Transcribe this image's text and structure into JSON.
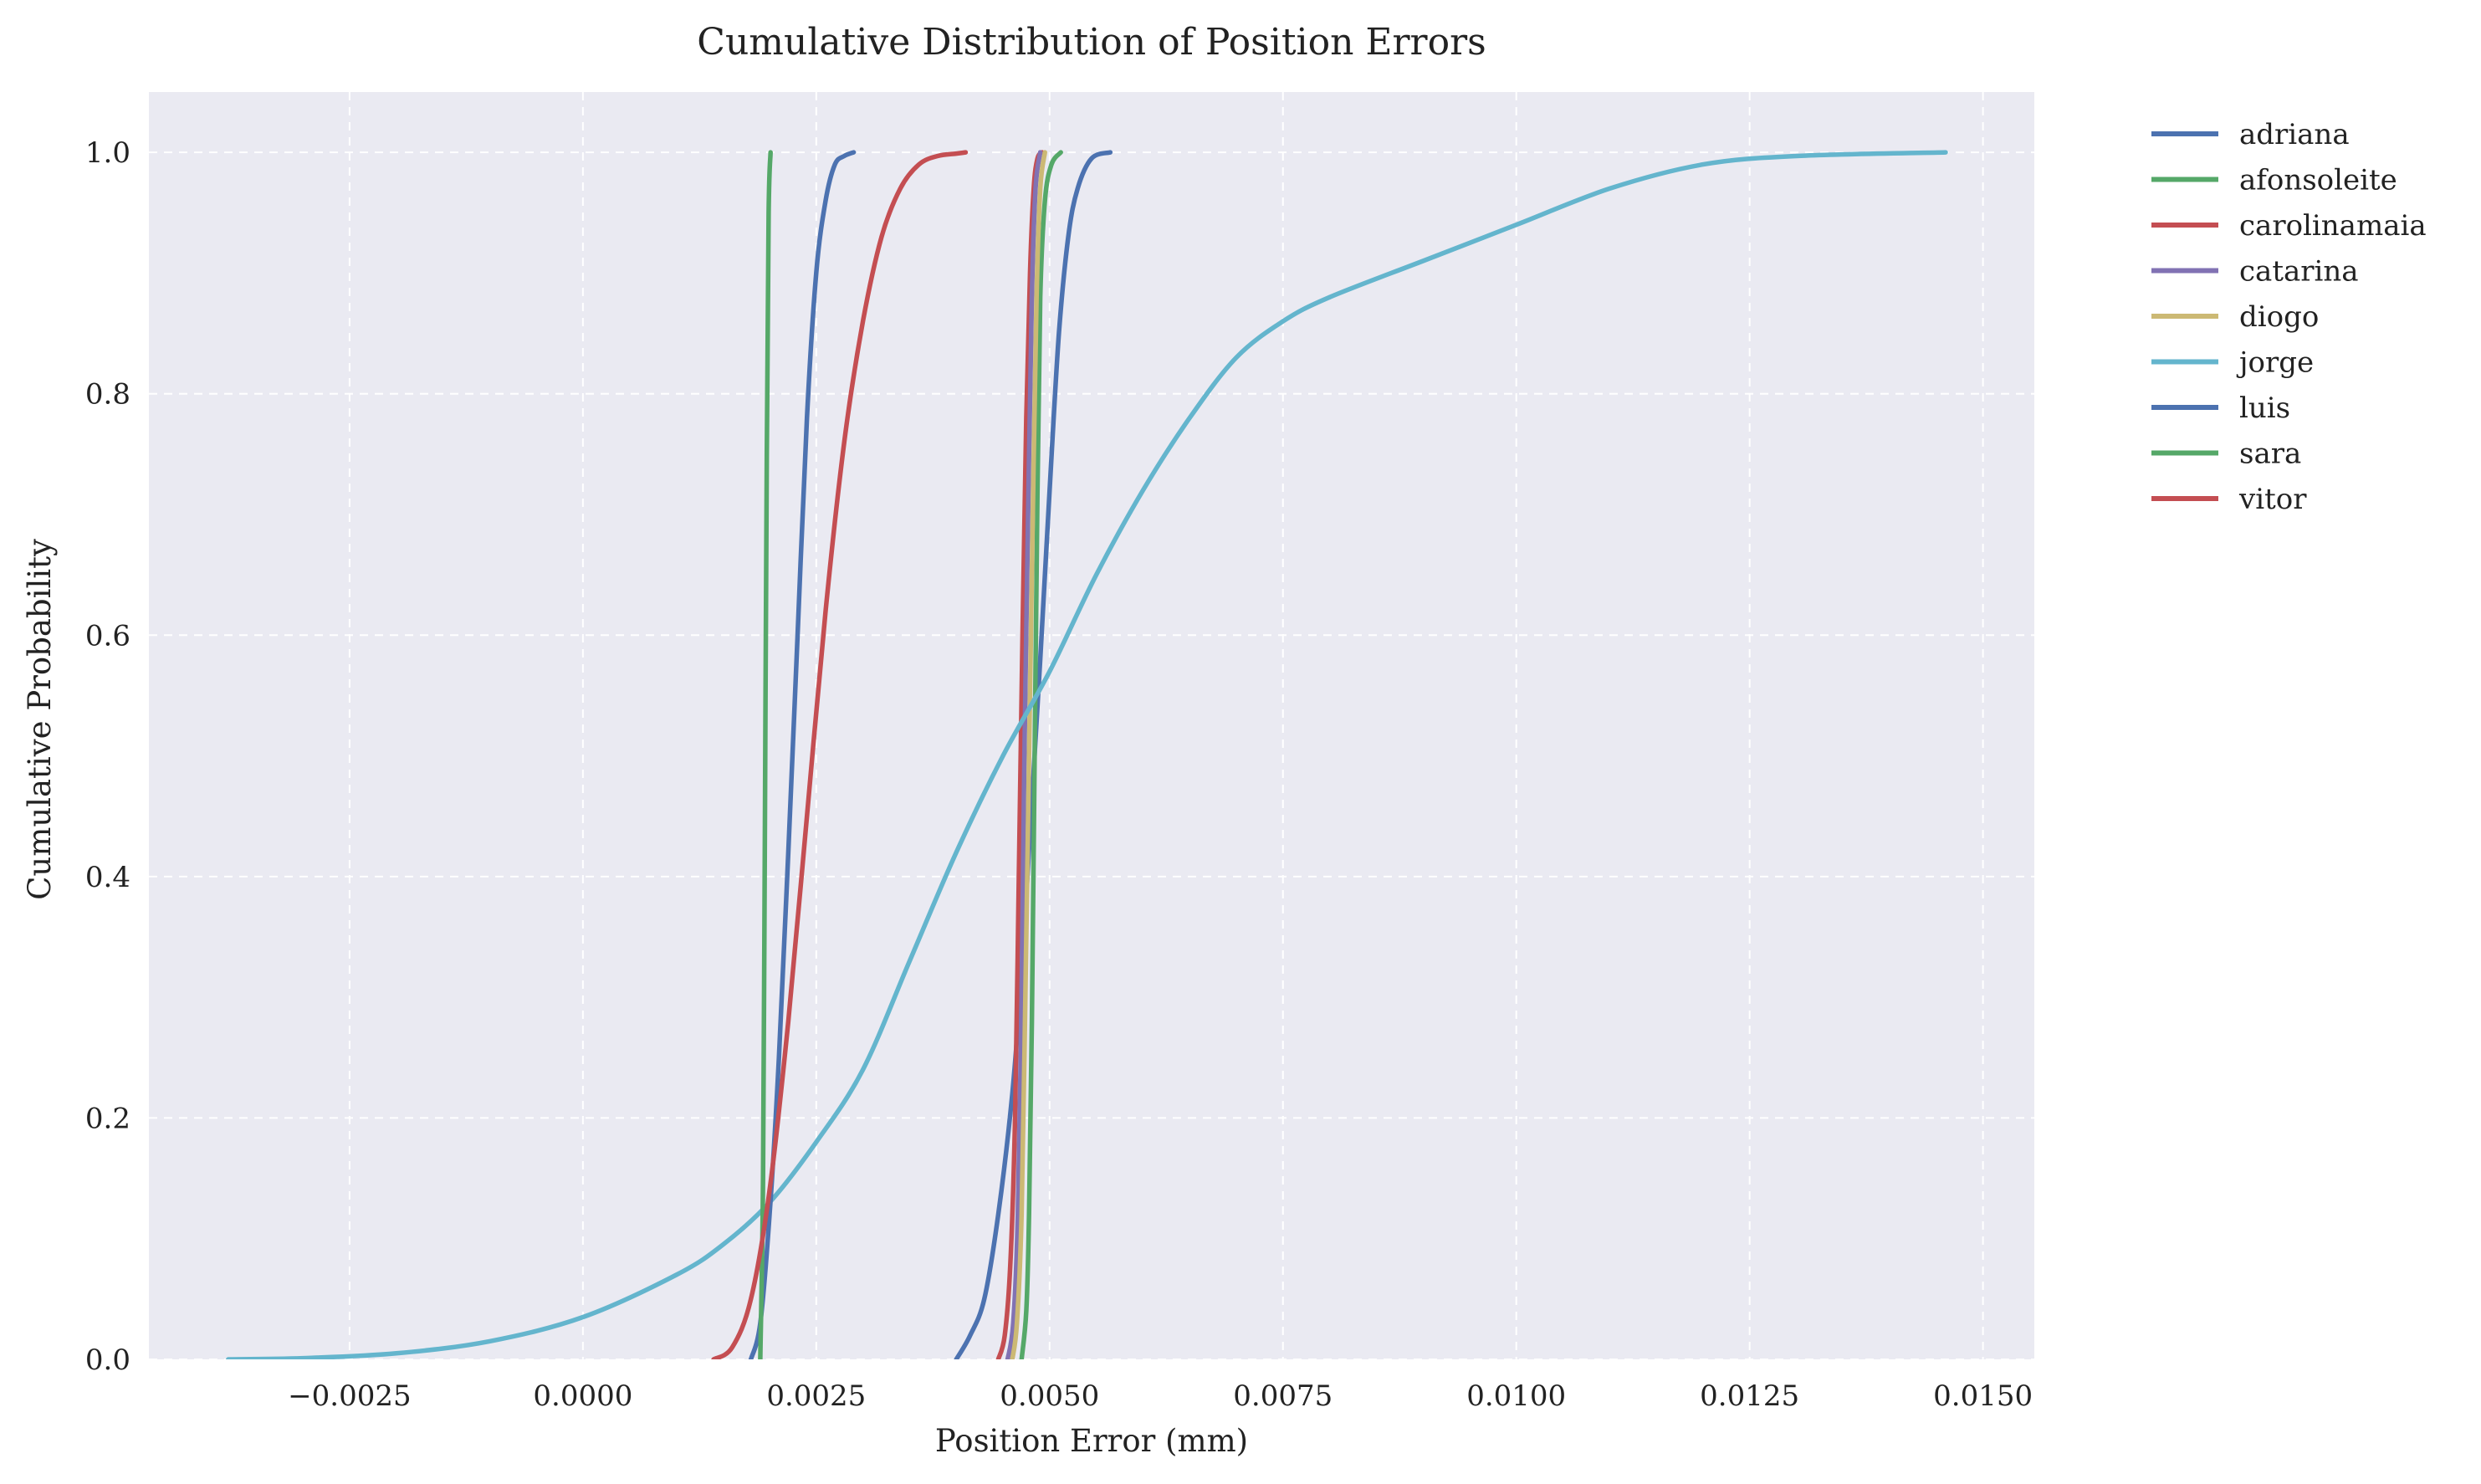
{
  "chart_data": {
    "type": "line",
    "title": "Cumulative Distribution of Position Errors",
    "xlabel": "Position Error (mm)",
    "ylabel": "Cumulative Probability",
    "xlim": [
      -0.00465,
      0.01555
    ],
    "ylim": [
      0.0,
      1.05
    ],
    "x_ticks": [
      -0.0025,
      0.0,
      0.0025,
      0.005,
      0.0075,
      0.01,
      0.0125,
      0.015
    ],
    "x_tick_labels": [
      "−0.0025",
      "0.0000",
      "0.0025",
      "0.0050",
      "0.0075",
      "0.0100",
      "0.0125",
      "0.0150"
    ],
    "y_ticks": [
      0.0,
      0.2,
      0.4,
      0.6,
      0.8,
      1.0
    ],
    "y_tick_labels": [
      "0.0",
      "0.2",
      "0.4",
      "0.6",
      "0.8",
      "1.0"
    ],
    "grid": true,
    "legend_position": "outside-right",
    "series": [
      {
        "name": "adriana",
        "color": "#4c72b0",
        "x": [
          0.004,
          0.00415,
          0.0043,
          0.00445,
          0.0046,
          0.0047,
          0.0048,
          0.0049,
          0.005,
          0.0051,
          0.0052,
          0.0053,
          0.00545,
          0.00565
        ],
        "y": [
          0.0,
          0.02,
          0.05,
          0.12,
          0.22,
          0.32,
          0.45,
          0.58,
          0.72,
          0.85,
          0.93,
          0.97,
          0.995,
          1.0
        ]
      },
      {
        "name": "afonsoleite",
        "color": "#55a868",
        "x": [
          0.0047,
          0.00475,
          0.00478,
          0.00481,
          0.00484,
          0.00487,
          0.0049,
          0.00495,
          0.00502,
          0.00512
        ],
        "y": [
          0.0,
          0.04,
          0.12,
          0.28,
          0.5,
          0.72,
          0.88,
          0.96,
          0.99,
          1.0
        ]
      },
      {
        "name": "carolinamaia",
        "color": "#c44e52",
        "x": [
          0.00445,
          0.00452,
          0.00458,
          0.00463,
          0.00467,
          0.00471,
          0.00475,
          0.00479,
          0.00483,
          0.00487,
          0.00492
        ],
        "y": [
          0.0,
          0.02,
          0.08,
          0.2,
          0.4,
          0.6,
          0.78,
          0.9,
          0.97,
          0.995,
          1.0
        ]
      },
      {
        "name": "catarina",
        "color": "#8172b3",
        "x": [
          0.00455,
          0.00461,
          0.00466,
          0.0047,
          0.00473,
          0.00477,
          0.00481,
          0.00485,
          0.0049
        ],
        "y": [
          0.0,
          0.03,
          0.12,
          0.3,
          0.5,
          0.7,
          0.88,
          0.97,
          1.0
        ]
      },
      {
        "name": "diogo",
        "color": "#ccb974",
        "x": [
          0.0046,
          0.00465,
          0.0047,
          0.00474,
          0.00478,
          0.00482,
          0.00486,
          0.0049,
          0.00495
        ],
        "y": [
          0.0,
          0.03,
          0.12,
          0.3,
          0.5,
          0.7,
          0.88,
          0.97,
          1.0
        ]
      },
      {
        "name": "jorge",
        "color": "#64b5cd",
        "x": [
          -0.0038,
          -0.003,
          -0.002,
          -0.001,
          0.0,
          0.001,
          0.0015,
          0.002,
          0.0025,
          0.003,
          0.0035,
          0.004,
          0.0045,
          0.005,
          0.0055,
          0.006,
          0.0065,
          0.007,
          0.0075,
          0.008,
          0.009,
          0.01,
          0.011,
          0.012,
          0.013,
          0.0146
        ],
        "y": [
          0.0,
          0.001,
          0.005,
          0.015,
          0.035,
          0.07,
          0.095,
          0.13,
          0.18,
          0.24,
          0.33,
          0.42,
          0.5,
          0.57,
          0.65,
          0.72,
          0.78,
          0.83,
          0.86,
          0.88,
          0.91,
          0.94,
          0.97,
          0.99,
          0.997,
          1.0
        ]
      },
      {
        "name": "luis",
        "color": "#4c72b0",
        "x": [
          0.0018,
          0.0019,
          0.002,
          0.0021,
          0.0022,
          0.0023,
          0.0024,
          0.0025,
          0.0026,
          0.0027,
          0.0028,
          0.0029
        ],
        "y": [
          0.0,
          0.03,
          0.12,
          0.25,
          0.42,
          0.6,
          0.78,
          0.9,
          0.96,
          0.99,
          0.997,
          1.0
        ]
      },
      {
        "name": "sara",
        "color": "#55a868",
        "x": [
          0.0019,
          0.00193,
          0.00195,
          0.00197,
          0.00199,
          0.00201
        ],
        "y": [
          0.0,
          0.15,
          0.45,
          0.75,
          0.95,
          1.0
        ]
      },
      {
        "name": "vitor",
        "color": "#c44e52",
        "x": [
          0.0014,
          0.0016,
          0.0018,
          0.002,
          0.0022,
          0.0024,
          0.0026,
          0.0028,
          0.003,
          0.0032,
          0.0034,
          0.0036,
          0.0038,
          0.004,
          0.0041
        ],
        "y": [
          0.0,
          0.01,
          0.05,
          0.14,
          0.28,
          0.45,
          0.62,
          0.76,
          0.86,
          0.93,
          0.97,
          0.99,
          0.997,
          0.999,
          1.0
        ]
      }
    ]
  },
  "style": {
    "plot_background": "#eaeaf2",
    "grid_color": "#ffffff"
  }
}
